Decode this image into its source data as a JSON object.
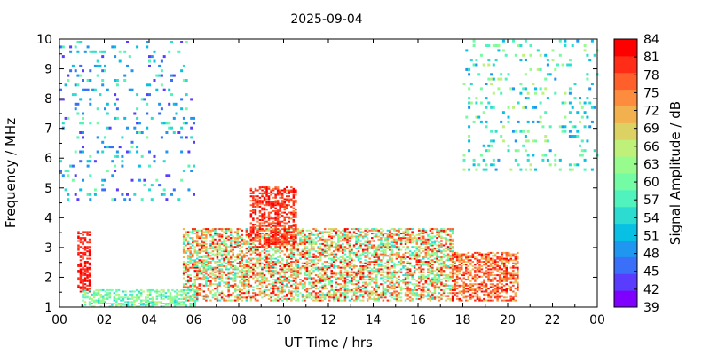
{
  "chart_data": {
    "type": "heatmap",
    "title": "2025-09-04",
    "xlabel": "UT Time / hrs",
    "ylabel": "Frequency / MHz",
    "xlim": [
      0,
      24
    ],
    "ylim": [
      1,
      10
    ],
    "x_tick_labels": [
      "00",
      "02",
      "04",
      "06",
      "08",
      "10",
      "12",
      "14",
      "16",
      "18",
      "20",
      "22",
      "00"
    ],
    "y_tick_labels": [
      "1",
      "2",
      "3",
      "4",
      "5",
      "6",
      "7",
      "8",
      "9",
      "10"
    ],
    "colorbar": {
      "label": "Signal Amplitude / dB",
      "min": 39,
      "max": 84,
      "tick_labels": [
        "39",
        "42",
        "45",
        "48",
        "51",
        "54",
        "57",
        "60",
        "63",
        "66",
        "69",
        "72",
        "75",
        "78",
        "81",
        "84"
      ],
      "colors": [
        "#8000ff",
        "#5a3cfe",
        "#3a6ff9",
        "#1f96f0",
        "#08c0e4",
        "#2ddcd0",
        "#50f2bd",
        "#74fca5",
        "#97fb8e",
        "#bff07a",
        "#dcd264",
        "#f2b04f",
        "#fe8c3e",
        "#ff5f2b",
        "#ff2d18",
        "#ff0000"
      ]
    },
    "grid": false,
    "summary_regions": [
      {
        "name": "main band",
        "x_range": [
          5.5,
          17.5
        ],
        "freq_range": [
          1.2,
          3.6
        ],
        "amplitude_range": [
          54,
          84
        ]
      },
      {
        "name": "peak region",
        "x_range": [
          8.5,
          10.5
        ],
        "freq_range": [
          3.0,
          5.0
        ],
        "amplitude_range": [
          75,
          84
        ]
      },
      {
        "name": "early burst",
        "x_range": [
          0.8,
          1.4
        ],
        "freq_range": [
          1.5,
          3.5
        ],
        "amplitude_range": [
          78,
          84
        ]
      },
      {
        "name": "afternoon tail",
        "x_range": [
          17.5,
          20.5
        ],
        "freq_range": [
          1.2,
          2.8
        ],
        "amplitude_range": [
          69,
          84
        ]
      },
      {
        "name": "low flank",
        "x_range": [
          1.0,
          6.0
        ],
        "freq_range": [
          1.0,
          1.6
        ],
        "amplitude_range": [
          54,
          66
        ]
      },
      {
        "name": "night scatter",
        "x_range": [
          0,
          6.0
        ],
        "freq_range": [
          4.5,
          9.9
        ],
        "amplitude_range": [
          42,
          60
        ]
      },
      {
        "name": "late night scatter",
        "x_range": [
          18.0,
          24.0
        ],
        "freq_range": [
          5.5,
          9.9
        ],
        "amplitude_range": [
          48,
          66
        ]
      }
    ]
  }
}
